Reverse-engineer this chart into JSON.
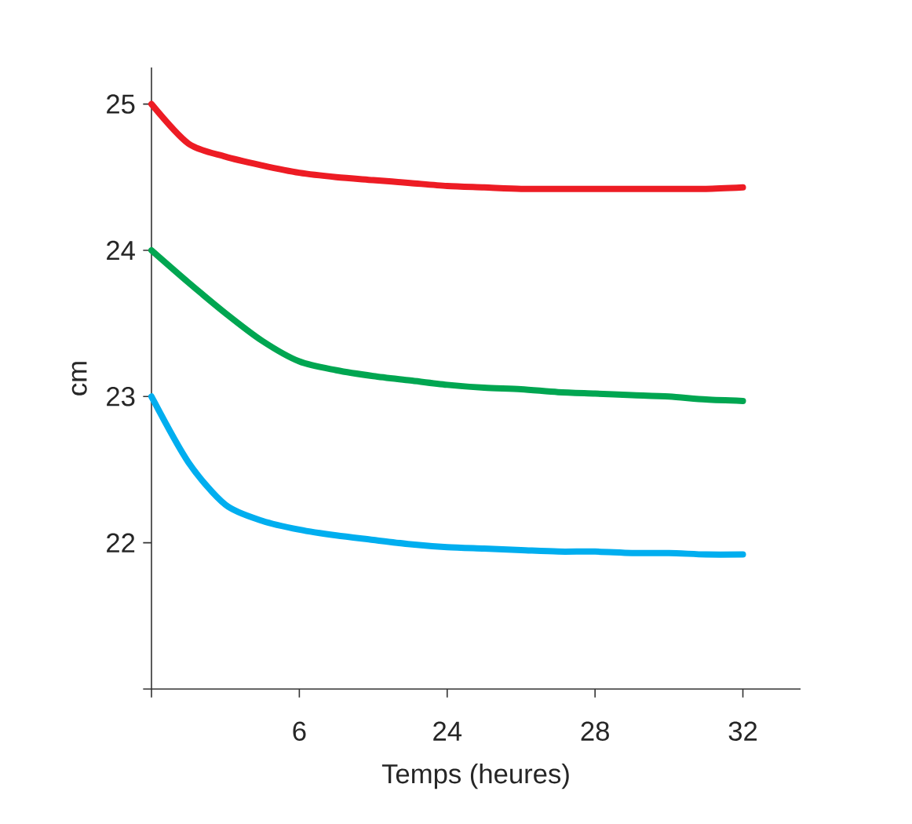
{
  "chart_data": {
    "type": "line",
    "xlabel": "Temps (heures)",
    "ylabel": "cm",
    "categories": [
      null,
      null,
      null,
      null,
      "6",
      null,
      null,
      null,
      "24",
      null,
      null,
      null,
      "28",
      null,
      null,
      null,
      "32"
    ],
    "ylim": [
      21,
      25.25
    ],
    "yticks": [
      {
        "value": 21,
        "label": null
      },
      22,
      23,
      24,
      25
    ],
    "marker": "none",
    "line_style": "solid",
    "series": [
      {
        "color": "#ed1c24",
        "values": [
          25.0,
          24.73,
          24.64,
          24.58,
          24.53,
          24.5,
          24.48,
          24.46,
          24.44,
          24.43,
          24.42,
          24.42,
          24.42,
          24.42,
          24.42,
          24.42,
          24.43
        ]
      },
      {
        "color": "#00a651",
        "values": [
          24.0,
          23.78,
          23.57,
          23.38,
          23.24,
          23.18,
          23.14,
          23.11,
          23.08,
          23.06,
          23.05,
          23.03,
          23.02,
          23.01,
          23.0,
          22.98,
          22.97
        ]
      },
      {
        "color": "#00aeef",
        "values": [
          23.0,
          22.55,
          22.26,
          22.15,
          22.09,
          22.05,
          22.02,
          21.99,
          21.97,
          21.96,
          21.95,
          21.94,
          21.94,
          21.93,
          21.93,
          21.92,
          21.92
        ]
      }
    ]
  }
}
